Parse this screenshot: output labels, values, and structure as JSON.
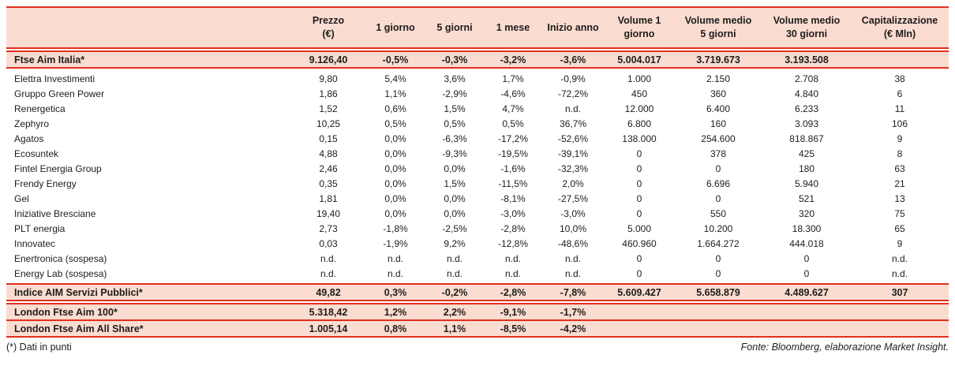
{
  "colors": {
    "band_background": "#fbdcd0",
    "rule_red": "#e0301e",
    "text": "#1d1d1b"
  },
  "table": {
    "columns": [
      {
        "line1": "",
        "line2": ""
      },
      {
        "line1": "Prezzo",
        "line2": "(€)"
      },
      {
        "line1": "1 giorno",
        "line2": ""
      },
      {
        "line1": "5 giorni",
        "line2": ""
      },
      {
        "line1": "1 mese",
        "line2": ""
      },
      {
        "line1": "Inizio anno",
        "line2": ""
      },
      {
        "line1": "Volume 1",
        "line2": "giorno"
      },
      {
        "line1": "Volume medio",
        "line2": "5 giorni"
      },
      {
        "line1": "Volume medio",
        "line2": "30 giorni"
      },
      {
        "line1": "Capitalizzazione",
        "line2": "(€ Mln)"
      }
    ],
    "sections": [
      {
        "name": "ftse-aim-italia",
        "rows": [
          {
            "style": "index",
            "name": "Ftse Aim Italia*",
            "values": [
              "9.126,40",
              "-0,5%",
              "-0,3%",
              "-3,2%",
              "-3,6%",
              "5.004.017",
              "3.719.673",
              "3.193.508",
              ""
            ]
          }
        ]
      },
      {
        "name": "stocks",
        "rows": [
          {
            "style": "stock",
            "name": "Elettra Investimenti",
            "values": [
              "9,80",
              "5,4%",
              "3,6%",
              "1,7%",
              "-0,9%",
              "1.000",
              "2.150",
              "2.708",
              "38"
            ]
          },
          {
            "style": "stock",
            "name": "Gruppo Green Power",
            "values": [
              "1,86",
              "1,1%",
              "-2,9%",
              "-4,6%",
              "-72,2%",
              "450",
              "360",
              "4.840",
              "6"
            ]
          },
          {
            "style": "stock",
            "name": "Renergetica",
            "values": [
              "1,52",
              "0,6%",
              "1,5%",
              "4,7%",
              "n.d.",
              "12.000",
              "6.400",
              "6.233",
              "11"
            ]
          },
          {
            "style": "stock",
            "name": "Zephyro",
            "values": [
              "10,25",
              "0,5%",
              "0,5%",
              "0,5%",
              "36,7%",
              "6.800",
              "160",
              "3.093",
              "106"
            ]
          },
          {
            "style": "stock",
            "name": "Agatos",
            "values": [
              "0,15",
              "0,0%",
              "-6,3%",
              "-17,2%",
              "-52,6%",
              "138.000",
              "254.600",
              "818.867",
              "9"
            ]
          },
          {
            "style": "stock",
            "name": "Ecosuntek",
            "values": [
              "4,88",
              "0,0%",
              "-9,3%",
              "-19,5%",
              "-39,1%",
              "0",
              "378",
              "425",
              "8"
            ]
          },
          {
            "style": "stock",
            "name": "Fintel Energia Group",
            "values": [
              "2,46",
              "0,0%",
              "0,0%",
              "-1,6%",
              "-32,3%",
              "0",
              "0",
              "180",
              "63"
            ]
          },
          {
            "style": "stock",
            "name": "Frendy Energy",
            "values": [
              "0,35",
              "0,0%",
              "1,5%",
              "-11,5%",
              "2,0%",
              "0",
              "6.696",
              "5.940",
              "21"
            ]
          },
          {
            "style": "stock",
            "name": "Gel",
            "values": [
              "1,81",
              "0,0%",
              "0,0%",
              "-8,1%",
              "-27,5%",
              "0",
              "0",
              "521",
              "13"
            ]
          },
          {
            "style": "stock",
            "name": "Iniziative Bresciane",
            "values": [
              "19,40",
              "0,0%",
              "0,0%",
              "-3,0%",
              "-3,0%",
              "0",
              "550",
              "320",
              "75"
            ]
          },
          {
            "style": "stock",
            "name": "PLT energia",
            "values": [
              "2,73",
              "-1,8%",
              "-2,5%",
              "-2,8%",
              "10,0%",
              "5.000",
              "10.200",
              "18.300",
              "65"
            ]
          },
          {
            "style": "stock",
            "name": "Innovatec",
            "values": [
              "0,03",
              "-1,9%",
              "9,2%",
              "-12,8%",
              "-48,6%",
              "460.960",
              "1.664.272",
              "444.018",
              "9"
            ]
          },
          {
            "style": "stock",
            "name": "Enertronica (sospesa)",
            "values": [
              "n.d.",
              "n.d.",
              "n.d.",
              "n.d.",
              "n.d.",
              "0",
              "0",
              "0",
              "n.d."
            ]
          },
          {
            "style": "stock",
            "name": "Energy Lab (sospesa)",
            "values": [
              "n.d.",
              "n.d.",
              "n.d.",
              "n.d.",
              "n.d.",
              "0",
              "0",
              "0",
              "n.d."
            ]
          }
        ]
      },
      {
        "name": "indice-aim-servizi-pubblici",
        "rows": [
          {
            "style": "index",
            "name": "Indice AIM Servizi Pubblici*",
            "values": [
              "49,82",
              "0,3%",
              "-0,2%",
              "-2,8%",
              "-7,8%",
              "5.609.427",
              "5.658.879",
              "4.489.627",
              "307"
            ]
          }
        ]
      },
      {
        "name": "london-indices",
        "rows": [
          {
            "style": "index",
            "name": "London Ftse Aim 100*",
            "values": [
              "5.318,42",
              "1,2%",
              "2,2%",
              "-9,1%",
              "-1,7%",
              "",
              "",
              "",
              ""
            ]
          },
          {
            "style": "index",
            "name": "London Ftse Aim All Share*",
            "values": [
              "1.005,14",
              "0,8%",
              "1,1%",
              "-8,5%",
              "-4,2%",
              "",
              "",
              "",
              ""
            ]
          }
        ]
      }
    ]
  },
  "footer": {
    "left": "(*) Dati in punti",
    "source": "Fonte: Bloomberg, elaborazione Market Insight."
  }
}
